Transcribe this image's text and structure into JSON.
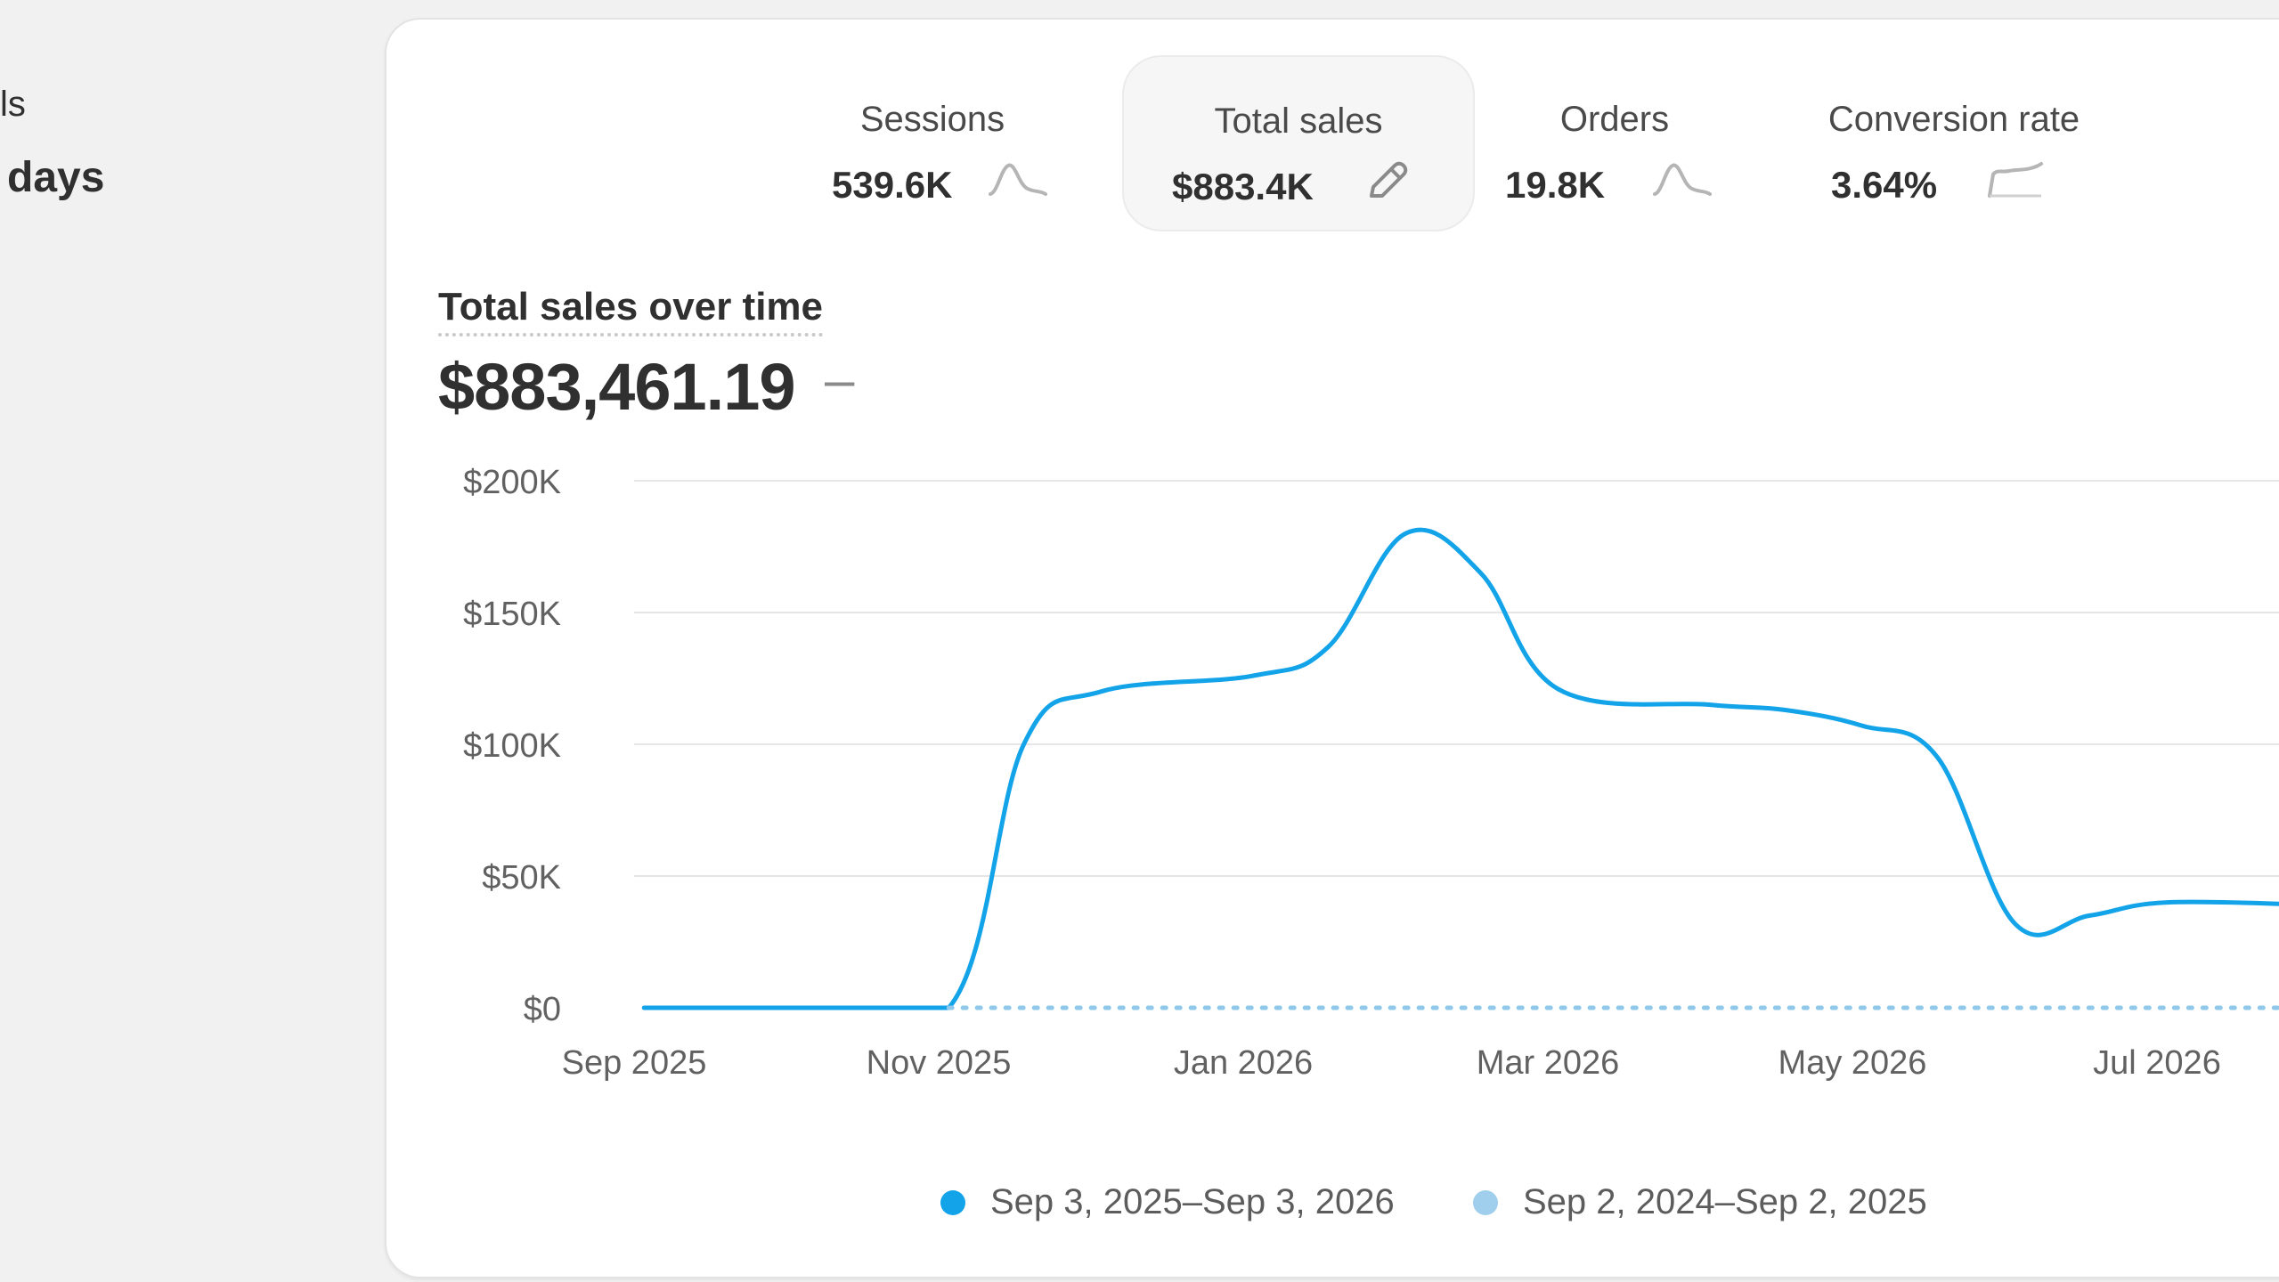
{
  "left": {
    "label": "ls",
    "value": "days"
  },
  "metrics": [
    {
      "label": "Sessions",
      "value": "539.6K",
      "icon": "sparkline-icon",
      "selected": false
    },
    {
      "label": "Total sales",
      "value": "$883.4K",
      "icon": "pencil-icon",
      "selected": true
    },
    {
      "label": "Orders",
      "value": "19.8K",
      "icon": "sparkline-icon",
      "selected": false
    },
    {
      "label": "Conversion rate",
      "value": "3.64%",
      "icon": "sparkline-icon",
      "selected": false
    }
  ],
  "chart_header": {
    "title": "Total sales over time",
    "total": "$883,461.19",
    "delta": "–"
  },
  "legend": [
    {
      "label": "Sep 3, 2025–Sep 3, 2026",
      "color": "#13a3e8"
    },
    {
      "label": "Sep 2, 2024–Sep 2, 2025",
      "color": "#9fcfec"
    }
  ],
  "colors": {
    "current_series": "#13a3e8",
    "previous_series": "#8fc8ea",
    "grid": "#e6e6e6",
    "axis_text": "#616161"
  },
  "chart_data": {
    "type": "line",
    "ylim": [
      0,
      200000
    ],
    "y_ticks": [
      {
        "value": 200000,
        "label": "$200K"
      },
      {
        "value": 150000,
        "label": "$150K"
      },
      {
        "value": 100000,
        "label": "$100K"
      },
      {
        "value": 50000,
        "label": "$50K"
      },
      {
        "value": 0,
        "label": "$0"
      }
    ],
    "x_ticks": [
      "Sep 2025",
      "Nov 2025",
      "Jan 2026",
      "Mar 2026",
      "May 2026",
      "Jul 2026"
    ],
    "grid": true,
    "legend_position": "bottom-center",
    "series": [
      {
        "name": "Sep 3, 2025–Sep 3, 2026",
        "style": "solid",
        "points": [
          [
            "2025-09-03",
            0
          ],
          [
            "2025-10-03",
            0
          ],
          [
            "2025-11-03",
            0
          ],
          [
            "2025-11-18",
            100000
          ],
          [
            "2025-12-03",
            120000
          ],
          [
            "2026-01-03",
            126000
          ],
          [
            "2026-01-18",
            137000
          ],
          [
            "2026-02-03",
            180000
          ],
          [
            "2026-02-18",
            165000
          ],
          [
            "2026-03-03",
            121000
          ],
          [
            "2026-04-03",
            115000
          ],
          [
            "2026-04-18",
            113000
          ],
          [
            "2026-05-03",
            107000
          ],
          [
            "2026-05-18",
            95000
          ],
          [
            "2026-06-03",
            32000
          ],
          [
            "2026-06-18",
            35000
          ],
          [
            "2026-07-03",
            40000
          ],
          [
            "2026-08-03",
            39000
          ]
        ]
      },
      {
        "name": "Sep 2, 2024–Sep 2, 2025",
        "style": "dotted",
        "points": [
          [
            "2025-11-03",
            0
          ],
          [
            "2026-08-03",
            0
          ]
        ]
      }
    ]
  }
}
